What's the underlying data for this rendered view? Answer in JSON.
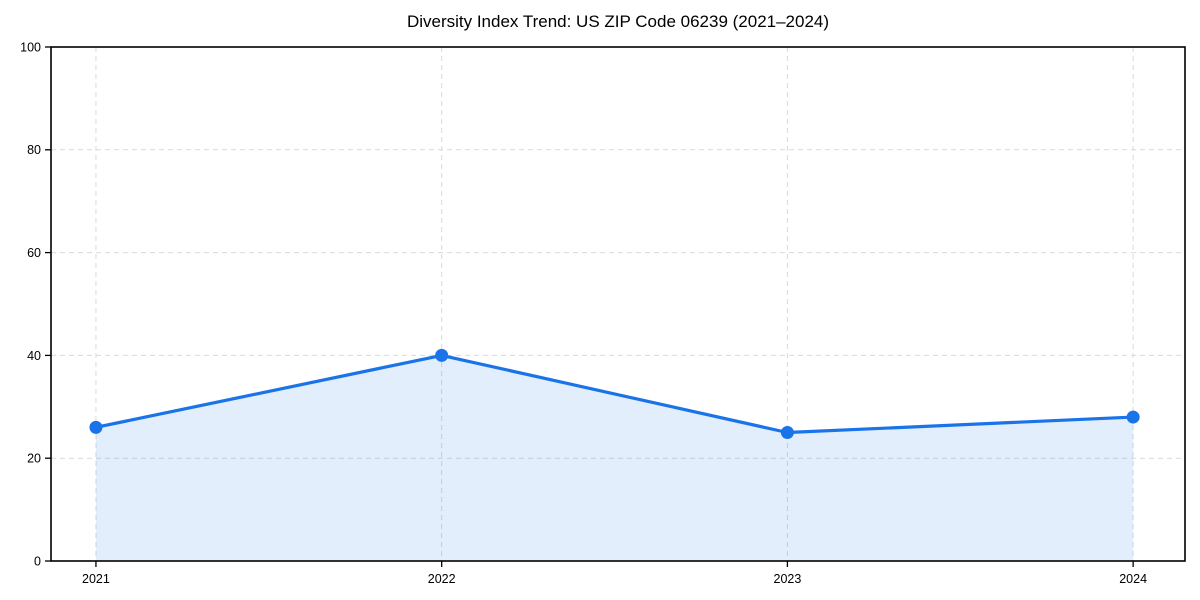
{
  "title": "Diversity Index Trend: US ZIP Code 06239 (2021–2024)",
  "chart_data": {
    "type": "line",
    "title": "Diversity Index Trend: US ZIP Code 06239 (2021–2024)",
    "categories": [
      "2021",
      "2022",
      "2023",
      "2024"
    ],
    "x": [
      2021,
      2022,
      2023,
      2024
    ],
    "series": [
      {
        "name": "Diversity Index",
        "values": [
          26,
          40,
          25,
          28
        ]
      }
    ],
    "ylim": [
      0,
      100
    ],
    "yticks": [
      0,
      20,
      40,
      60,
      80,
      100
    ],
    "xlim": [
      2020.87,
      2024.15
    ],
    "grid": true,
    "grid_line_style": "dashed",
    "legend_position": "none",
    "area_fill": true,
    "colors": {
      "line": "#1a73e8",
      "marker": "#1a73e8",
      "area": "#1a73e8",
      "area_opacity": 0.12,
      "grid": "#d9d9d9",
      "spine": "#000000",
      "text": "#000000",
      "background": "#ffffff"
    }
  }
}
